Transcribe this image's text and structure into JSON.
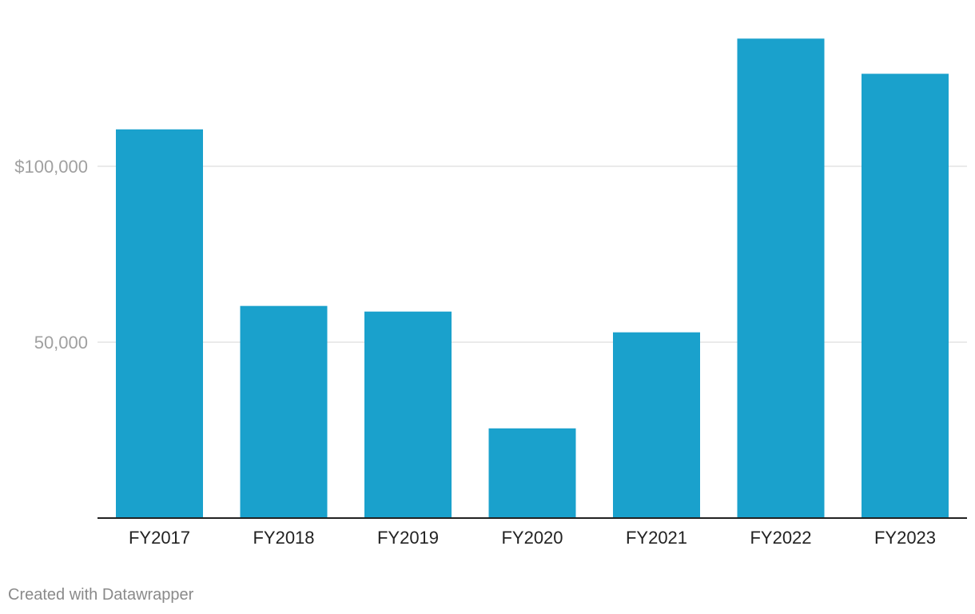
{
  "chart_data": {
    "type": "bar",
    "categories": [
      "FY2017",
      "FY2018",
      "FY2019",
      "FY2020",
      "FY2021",
      "FY2022",
      "FY2023"
    ],
    "values": [
      110500,
      60300,
      58700,
      25500,
      52800,
      136300,
      126300
    ],
    "yticks": [
      {
        "value": 50000,
        "label": "50,000"
      },
      {
        "value": 100000,
        "label": "$100,000"
      }
    ],
    "ylim": [
      0,
      140000
    ],
    "grid": true,
    "bar_color": "#1aa1cc",
    "title": "",
    "xlabel": "",
    "ylabel": ""
  },
  "footer": {
    "credit": "Created with Datawrapper"
  }
}
